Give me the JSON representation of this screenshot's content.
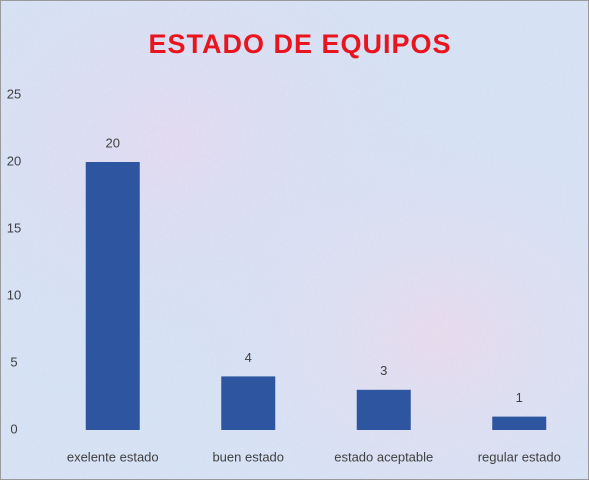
{
  "chart_data": {
    "type": "bar",
    "title": "ESTADO DE EQUIPOS",
    "categories": [
      "exelente estado",
      "buen estado",
      "estado aceptable",
      "regular estado"
    ],
    "values": [
      20,
      4,
      3,
      1
    ],
    "color": "#2e55a0",
    "ylim": [
      0,
      25
    ],
    "yticks": [
      0,
      5,
      10,
      15,
      20,
      25
    ],
    "grid": false
  }
}
